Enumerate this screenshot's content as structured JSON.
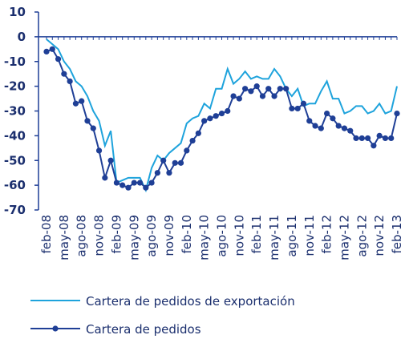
{
  "chart_data": {
    "type": "line",
    "categories": [
      "feb-08",
      null,
      null,
      "may-08",
      null,
      null,
      "ago-08",
      null,
      null,
      "nov-08",
      null,
      null,
      "feb-09",
      null,
      null,
      "may-09",
      null,
      null,
      "ago-09",
      null,
      null,
      "nov-09",
      null,
      null,
      "feb-10",
      null,
      null,
      "may-10",
      null,
      null,
      "ago-10",
      null,
      null,
      "nov-10",
      null,
      null,
      "feb-11",
      null,
      null,
      "may-11",
      null,
      null,
      "ago-11",
      null,
      null,
      "nov-11",
      null,
      null,
      "feb-12",
      null,
      null,
      "may-12",
      null,
      null,
      "ago-12",
      null,
      null,
      "nov-12",
      null,
      null,
      "feb-13"
    ],
    "series": [
      {
        "name": "Cartera de pedidos de exportación",
        "color": "#1ea3dc",
        "markers": false,
        "values": [
          -1,
          -3,
          -5,
          -10,
          -13,
          -18,
          -20,
          -24,
          -30,
          -34,
          -44,
          -38,
          -59,
          -58,
          -57,
          -57,
          -57,
          -62,
          -53,
          -48,
          -50,
          -47,
          -45,
          -43,
          -35,
          -33,
          -32,
          -27,
          -29,
          -21,
          -21,
          -13,
          -19,
          -17,
          -14,
          -17,
          -16,
          -17,
          -17,
          -13,
          -16,
          -21,
          -24,
          -21,
          -28,
          -27,
          -27,
          -22,
          -18,
          -25,
          -25,
          -31,
          -30,
          -28,
          -28,
          -31,
          -30,
          -27,
          -31,
          -30,
          -20
        ]
      },
      {
        "name": "Cartera de pedidos",
        "color": "#1f3f96",
        "markers": true,
        "values": [
          -6,
          -5,
          -9,
          -15,
          -18,
          -27,
          -26,
          -34,
          -37,
          -46,
          -57,
          -50,
          -59,
          -60,
          -61,
          -59,
          -59,
          -61,
          -59,
          -55,
          -50,
          -55,
          -51,
          -51,
          -46,
          -42,
          -39,
          -34,
          -33,
          -32,
          -31,
          -30,
          -24,
          -25,
          -21,
          -22,
          -20,
          -24,
          -21,
          -24,
          -21,
          -21,
          -29,
          -29,
          -27,
          -34,
          -36,
          -37,
          -31,
          -33,
          -36,
          -37,
          -38,
          -41,
          -41,
          -41,
          -44,
          -40,
          -41,
          -41,
          -31
        ]
      }
    ],
    "ylim": [
      -70,
      10
    ],
    "yticks": [
      10,
      0,
      -10,
      -20,
      -30,
      -40,
      -50,
      -60,
      -70
    ]
  }
}
